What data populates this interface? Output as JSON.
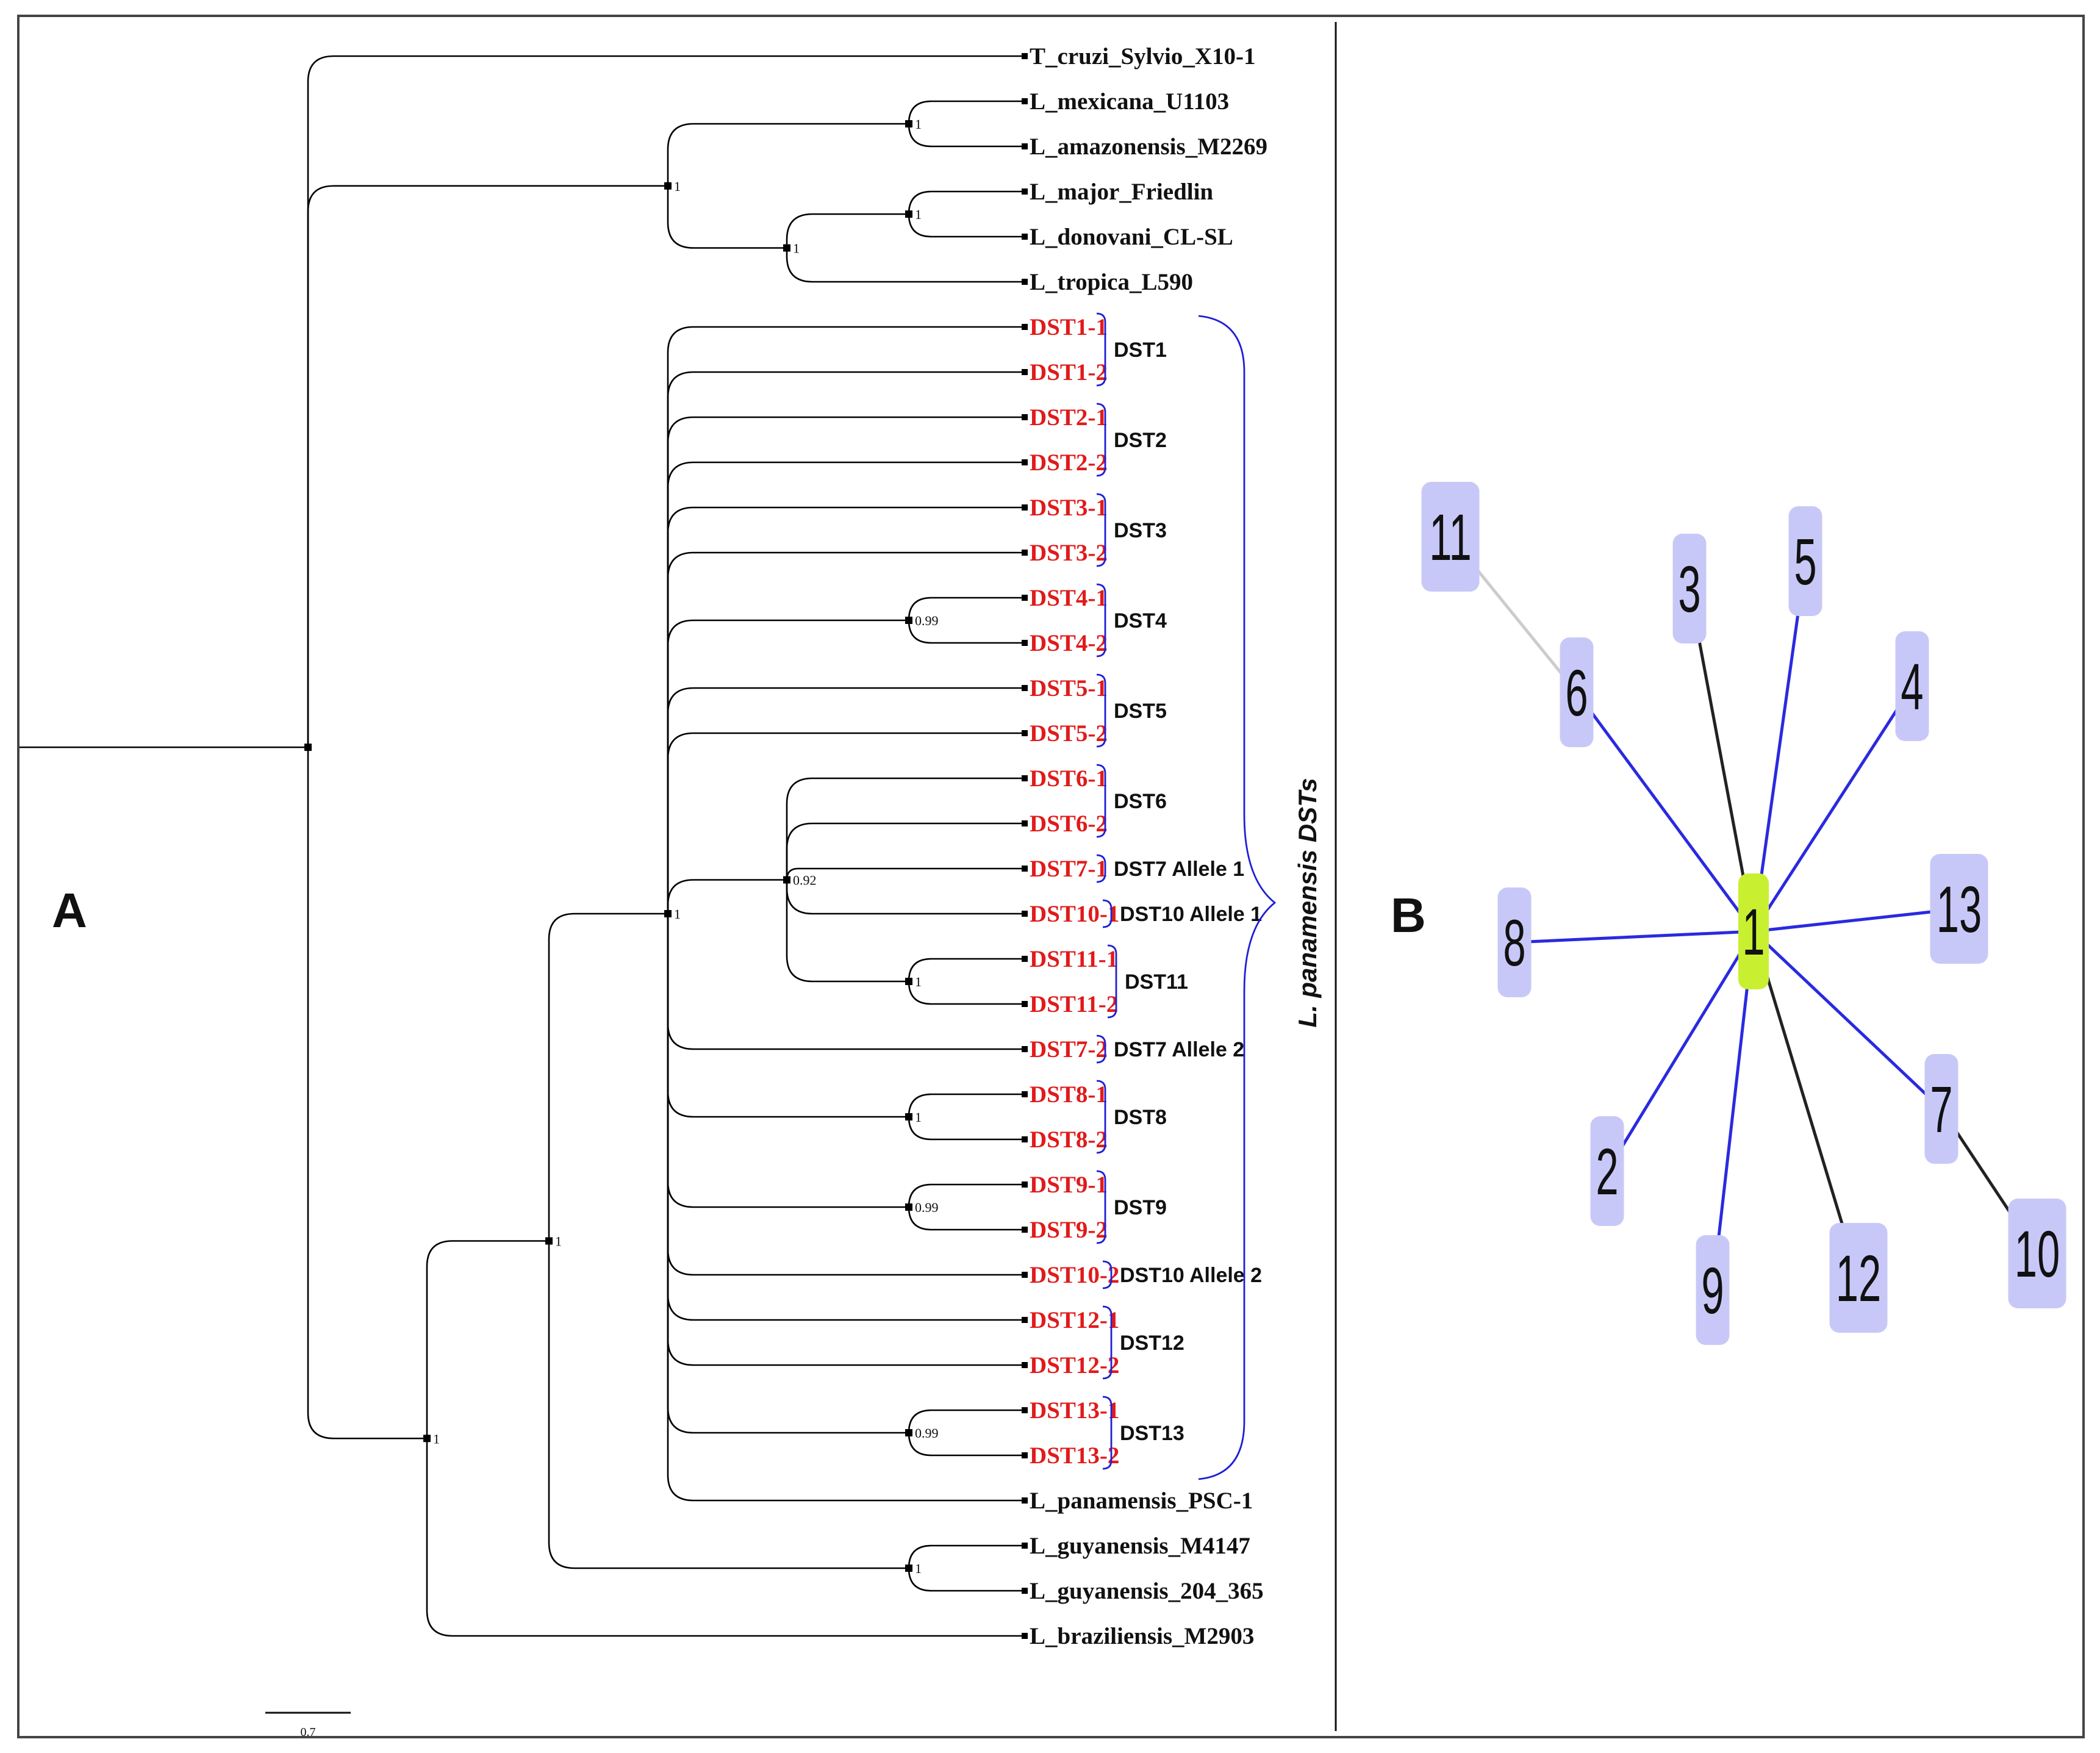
{
  "panel_a": {
    "letter": "A",
    "clade_label": "L. panamensis DSTs",
    "scale_label": "0.7",
    "tips": [
      {
        "id": "t1",
        "label": "T_cruzi_Sylvio_X10-1",
        "color": "black"
      },
      {
        "id": "t2",
        "label": "L_mexicana_U1103",
        "color": "black"
      },
      {
        "id": "t3",
        "label": "L_amazonensis_M2269",
        "color": "black"
      },
      {
        "id": "t4",
        "label": "L_major_Friedlin",
        "color": "black"
      },
      {
        "id": "t5",
        "label": "L_donovani_CL-SL",
        "color": "black"
      },
      {
        "id": "t6",
        "label": "L_tropica_L590",
        "color": "black"
      },
      {
        "id": "t7",
        "label": "DST1-1",
        "color": "red"
      },
      {
        "id": "t8",
        "label": "DST1-2",
        "color": "red"
      },
      {
        "id": "t9",
        "label": "DST2-1",
        "color": "red"
      },
      {
        "id": "t10",
        "label": "DST2-2",
        "color": "red"
      },
      {
        "id": "t11",
        "label": "DST3-1",
        "color": "red"
      },
      {
        "id": "t12",
        "label": "DST3-2",
        "color": "red"
      },
      {
        "id": "t13",
        "label": "DST4-1",
        "color": "red"
      },
      {
        "id": "t14",
        "label": "DST4-2",
        "color": "red"
      },
      {
        "id": "t15",
        "label": "DST5-1",
        "color": "red"
      },
      {
        "id": "t16",
        "label": "DST5-2",
        "color": "red"
      },
      {
        "id": "t17",
        "label": "DST6-1",
        "color": "red"
      },
      {
        "id": "t18",
        "label": "DST6-2",
        "color": "red"
      },
      {
        "id": "t19",
        "label": "DST7-1",
        "color": "red"
      },
      {
        "id": "t20",
        "label": "DST10-1",
        "color": "red"
      },
      {
        "id": "t21",
        "label": "DST11-1",
        "color": "red"
      },
      {
        "id": "t22",
        "label": "DST11-2",
        "color": "red"
      },
      {
        "id": "t23",
        "label": "DST7-2",
        "color": "red"
      },
      {
        "id": "t24",
        "label": "DST8-1",
        "color": "red"
      },
      {
        "id": "t25",
        "label": "DST8-2",
        "color": "red"
      },
      {
        "id": "t26",
        "label": "DST9-1",
        "color": "red"
      },
      {
        "id": "t27",
        "label": "DST9-2",
        "color": "red"
      },
      {
        "id": "t28",
        "label": "DST10-2",
        "color": "red"
      },
      {
        "id": "t29",
        "label": "DST12-1",
        "color": "red"
      },
      {
        "id": "t30",
        "label": "DST12-2",
        "color": "red"
      },
      {
        "id": "t31",
        "label": "DST13-1",
        "color": "red"
      },
      {
        "id": "t32",
        "label": "DST13-2",
        "color": "red"
      },
      {
        "id": "t33",
        "label": "L_panamensis_PSC-1",
        "color": "black"
      },
      {
        "id": "t34",
        "label": "L_guyanensis_M4147",
        "color": "black"
      },
      {
        "id": "t35",
        "label": "L_guyanensis_204_365",
        "color": "black"
      },
      {
        "id": "t36",
        "label": "L_braziliensis_M2903",
        "color": "black"
      }
    ],
    "support_values": [
      "1",
      "1",
      "1",
      "1",
      "0.99",
      "0.92",
      "1",
      "1",
      "0.99",
      "0.99",
      "1",
      "1",
      "1",
      "1"
    ],
    "groups": [
      {
        "label": "DST1"
      },
      {
        "label": "DST2"
      },
      {
        "label": "DST3"
      },
      {
        "label": "DST4"
      },
      {
        "label": "DST5"
      },
      {
        "label": "DST6"
      },
      {
        "label": "DST7 Allele 1"
      },
      {
        "label": "DST10 Allele 1"
      },
      {
        "label": "DST11"
      },
      {
        "label": "DST7 Allele 2"
      },
      {
        "label": "DST8"
      },
      {
        "label": "DST9"
      },
      {
        "label": "DST10 Allele 2"
      },
      {
        "label": "DST12"
      },
      {
        "label": "DST13"
      }
    ]
  },
  "panel_b": {
    "letter": "B",
    "center_node": "1",
    "nodes": [
      "1",
      "2",
      "3",
      "4",
      "5",
      "6",
      "7",
      "8",
      "9",
      "10",
      "11",
      "12",
      "13"
    ],
    "edges": [
      {
        "from": "1",
        "to": "6",
        "color": "#2a2ae0"
      },
      {
        "from": "6",
        "to": "11",
        "color": "#cccccc"
      },
      {
        "from": "1",
        "to": "3",
        "color": "#222222"
      },
      {
        "from": "1",
        "to": "5",
        "color": "#2a2ae0"
      },
      {
        "from": "1",
        "to": "4",
        "color": "#2a2ae0"
      },
      {
        "from": "1",
        "to": "13",
        "color": "#2a2ae0"
      },
      {
        "from": "1",
        "to": "8",
        "color": "#2a2ae0"
      },
      {
        "from": "1",
        "to": "7",
        "color": "#2a2ae0"
      },
      {
        "from": "7",
        "to": "10",
        "color": "#222222"
      },
      {
        "from": "1",
        "to": "12",
        "color": "#222222"
      },
      {
        "from": "1",
        "to": "9",
        "color": "#2a2ae0"
      },
      {
        "from": "1",
        "to": "2",
        "color": "#2a2ae0"
      }
    ]
  },
  "colors": {
    "tip_red": "#e01b1b",
    "bracket_blue": "#1f1fd6",
    "node_fill": "#c8c8f8",
    "center_fill": "#c8f030"
  }
}
